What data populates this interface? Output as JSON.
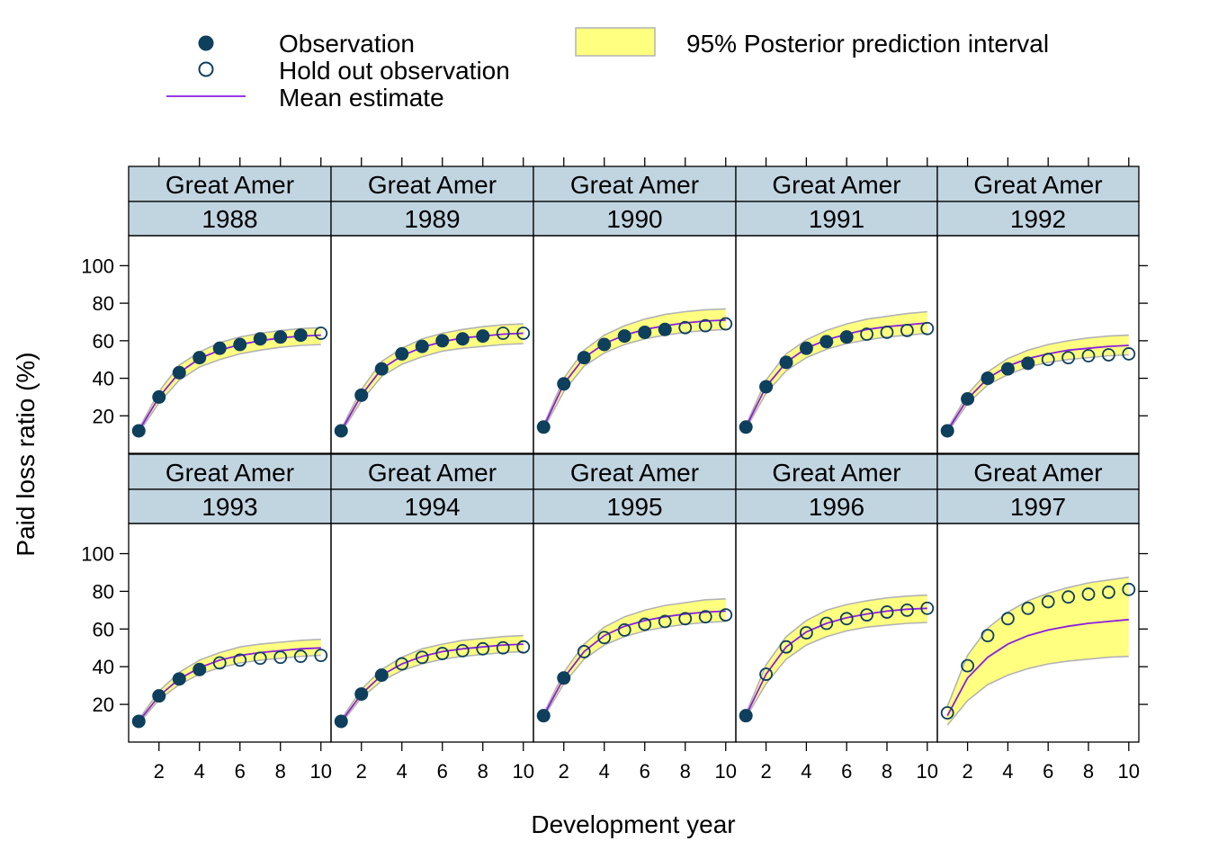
{
  "chart_data": {
    "type": "line",
    "layout": "trellis 5x2",
    "xlabel": "Development year",
    "ylabel": "Paid loss ratio (%)",
    "x": [
      1,
      2,
      3,
      4,
      5,
      6,
      7,
      8,
      9,
      10
    ],
    "xlim": [
      0.5,
      10.5
    ],
    "ylim": [
      0,
      116
    ],
    "x_ticks": [
      2,
      4,
      6,
      8,
      10
    ],
    "y_ticks": [
      20,
      40,
      60,
      80,
      100
    ],
    "grid": false,
    "legend_position": "top",
    "legend": {
      "observation": "Observation",
      "holdout": "Hold out observation",
      "mean": "Mean estimate",
      "interval": "95% Posterior prediction interval"
    },
    "colors": {
      "observation": "#0e3f5c",
      "mean": "#8a1de0",
      "interval_fill": "#ffff80",
      "interval_edge": "#b3b3b3",
      "strip": "#c1d5e1"
    },
    "panels": [
      {
        "company": "Great Amer",
        "year": "1988",
        "obs": [
          12,
          30,
          43,
          51,
          56,
          58,
          61,
          62,
          63,
          null
        ],
        "holdout": [
          null,
          null,
          null,
          null,
          null,
          null,
          null,
          null,
          null,
          64
        ],
        "mean": [
          12,
          30,
          43,
          50.5,
          55,
          58,
          60,
          61.5,
          62.5,
          63
        ],
        "lower": [
          11,
          27,
          39,
          46,
          50,
          53,
          55,
          56.5,
          57.5,
          58
        ],
        "upper": [
          13,
          33,
          47,
          54,
          59,
          62,
          64,
          65.5,
          66.5,
          67
        ]
      },
      {
        "company": "Great Amer",
        "year": "1989",
        "obs": [
          12,
          31,
          45,
          53,
          57,
          60,
          61,
          62.5,
          null,
          null
        ],
        "holdout": [
          null,
          null,
          null,
          null,
          null,
          null,
          null,
          null,
          64,
          64
        ],
        "mean": [
          12,
          31,
          45,
          52,
          56.5,
          59.5,
          61.5,
          62.5,
          63.5,
          64
        ],
        "lower": [
          11,
          28,
          41,
          47.5,
          51.5,
          54.5,
          56,
          57,
          58,
          58.5
        ],
        "upper": [
          13,
          34,
          49,
          56,
          61,
          64,
          66,
          67.5,
          68.5,
          69
        ]
      },
      {
        "company": "Great Amer",
        "year": "1990",
        "obs": [
          14,
          37,
          51,
          58,
          62.5,
          64.5,
          66,
          null,
          null,
          null
        ],
        "holdout": [
          null,
          null,
          null,
          null,
          null,
          null,
          null,
          67,
          68,
          69
        ],
        "mean": [
          14,
          37,
          51,
          58.5,
          63,
          66,
          68,
          69.5,
          70.5,
          71
        ],
        "lower": [
          13,
          33,
          46.5,
          53.5,
          58,
          61,
          63,
          64.5,
          65.5,
          66
        ],
        "upper": [
          15,
          40,
          55,
          63,
          68,
          71.5,
          74,
          75.5,
          76.5,
          77
        ]
      },
      {
        "company": "Great Amer",
        "year": "1991",
        "obs": [
          14,
          35.5,
          48.5,
          56,
          59.5,
          62,
          null,
          null,
          null,
          null
        ],
        "holdout": [
          null,
          null,
          null,
          null,
          null,
          null,
          63.5,
          64.5,
          65.5,
          66.5
        ],
        "mean": [
          14,
          35.5,
          48.5,
          56,
          60.5,
          63.5,
          66,
          67.5,
          68.5,
          69.5
        ],
        "lower": [
          13,
          32,
          44,
          51,
          55.5,
          58.5,
          60.5,
          62,
          63,
          64
        ],
        "upper": [
          15,
          39,
          53,
          60.5,
          65.5,
          69,
          71.5,
          73,
          74.5,
          75.5
        ]
      },
      {
        "company": "Great Amer",
        "year": "1992",
        "obs": [
          12,
          29,
          40,
          45,
          48,
          null,
          null,
          null,
          null,
          null
        ],
        "holdout": [
          null,
          null,
          null,
          null,
          null,
          50,
          51,
          52,
          52.5,
          53
        ],
        "mean": [
          12,
          29,
          40,
          46.5,
          50.5,
          53,
          55,
          56,
          57,
          57.5
        ],
        "lower": [
          11,
          26.5,
          36.5,
          42,
          46,
          48.5,
          50,
          51,
          52,
          52.5
        ],
        "upper": [
          13,
          31.5,
          43.5,
          50.5,
          55,
          58,
          60,
          61.5,
          62.5,
          63
        ]
      },
      {
        "company": "Great Amer",
        "year": "1993",
        "obs": [
          11,
          24.5,
          33.5,
          38.5,
          null,
          null,
          null,
          null,
          null,
          null
        ],
        "holdout": [
          null,
          null,
          null,
          null,
          42,
          43.5,
          44.5,
          45,
          45.5,
          46
        ],
        "mean": [
          11,
          24.5,
          33.5,
          39.5,
          43.5,
          46,
          47.5,
          48.5,
          49.5,
          50
        ],
        "lower": [
          10,
          22.5,
          30.5,
          36,
          39.5,
          42,
          43.5,
          44.5,
          45.5,
          46
        ],
        "upper": [
          12,
          27,
          37,
          43.5,
          47.5,
          50.5,
          52,
          53,
          54,
          54.5
        ]
      },
      {
        "company": "Great Amer",
        "year": "1994",
        "obs": [
          11,
          25.5,
          35.5,
          null,
          null,
          null,
          null,
          null,
          null,
          null
        ],
        "holdout": [
          null,
          null,
          null,
          41.5,
          45,
          47,
          48.5,
          49.5,
          50,
          50.5
        ],
        "mean": [
          11,
          25.5,
          35.5,
          41.5,
          45.5,
          48,
          49.5,
          50.5,
          51.5,
          52
        ],
        "lower": [
          10,
          23.5,
          32.5,
          38,
          41.5,
          44,
          45.5,
          46.5,
          47.5,
          48
        ],
        "upper": [
          12,
          28,
          38.5,
          45,
          49.5,
          52,
          54,
          55,
          56,
          56.5
        ]
      },
      {
        "company": "Great Amer",
        "year": "1995",
        "obs": [
          14,
          34,
          null,
          null,
          null,
          null,
          null,
          null,
          null,
          null
        ],
        "holdout": [
          null,
          null,
          48,
          55.5,
          59.5,
          62.5,
          64,
          65.5,
          66.5,
          67.5
        ],
        "mean": [
          14,
          34,
          48,
          56.5,
          61.5,
          64.5,
          66.5,
          68,
          69,
          69.5
        ],
        "lower": [
          13,
          31,
          44,
          51.5,
          56,
          59,
          61,
          62.5,
          63.5,
          64
        ],
        "upper": [
          15,
          37,
          52,
          61,
          66.5,
          70,
          72.5,
          74,
          75.5,
          76
        ]
      },
      {
        "company": "Great Amer",
        "year": "1996",
        "obs": [
          14,
          null,
          null,
          null,
          null,
          null,
          null,
          null,
          null,
          null
        ],
        "holdout": [
          null,
          36,
          50.5,
          58,
          63,
          65.5,
          67.5,
          69,
          70,
          71
        ],
        "mean": [
          14,
          36,
          50.5,
          58.5,
          63,
          66,
          68,
          69.5,
          70.5,
          71
        ],
        "lower": [
          13,
          31,
          44,
          51.5,
          56,
          59,
          61,
          62,
          63,
          63.5
        ],
        "upper": [
          15,
          41,
          56,
          64.5,
          70,
          73,
          75,
          76.5,
          77.5,
          78
        ]
      },
      {
        "company": "Great Amer",
        "year": "1997",
        "obs": [
          null,
          null,
          null,
          null,
          null,
          null,
          null,
          null,
          null,
          null
        ],
        "holdout": [
          15.5,
          40.5,
          56.5,
          65.5,
          71,
          74.5,
          77,
          78.5,
          79.5,
          81
        ],
        "mean": [
          14,
          34,
          45,
          52,
          56.5,
          59.5,
          61.5,
          63,
          64,
          65
        ],
        "lower": [
          9,
          22,
          30.5,
          35.5,
          39,
          41.5,
          43,
          44,
          45,
          45.5
        ],
        "upper": [
          19,
          46,
          60.5,
          69,
          75,
          79,
          82,
          84.5,
          86,
          87.5
        ]
      }
    ]
  }
}
